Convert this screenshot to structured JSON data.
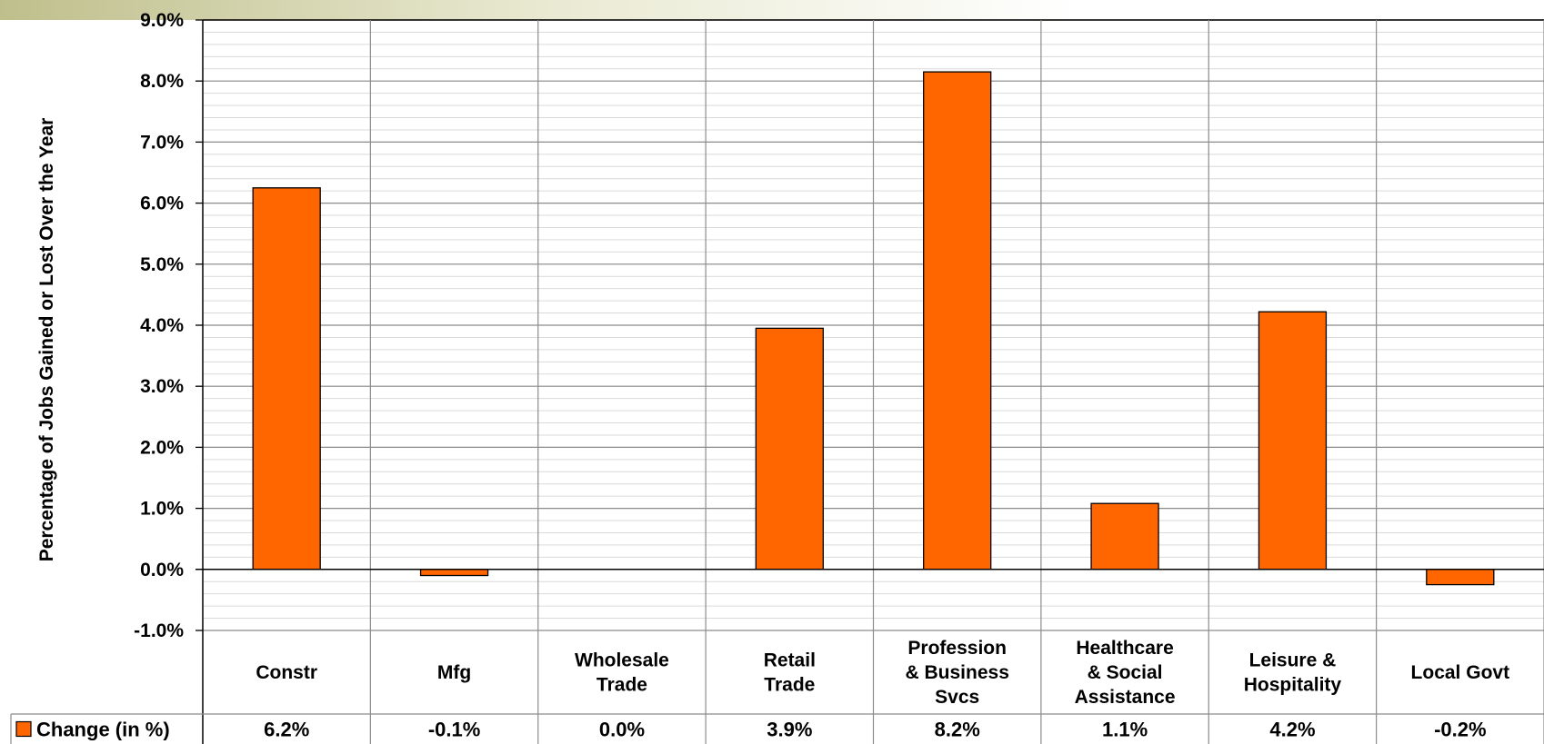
{
  "chart_data": {
    "type": "bar",
    "title": "",
    "xlabel": "",
    "ylabel": "Percentage of Jobs Gained or Lost Over the Year",
    "ylim": [
      -1.0,
      9.0
    ],
    "y_ticks": [
      "9.0%",
      "8.0%",
      "7.0%",
      "6.0%",
      "5.0%",
      "4.0%",
      "3.0%",
      "2.0%",
      "1.0%",
      "0.0%",
      "-1.0%"
    ],
    "categories": [
      [
        "Constr"
      ],
      [
        "Mfg"
      ],
      [
        "Wholesale",
        "Trade"
      ],
      [
        "Retail",
        "Trade"
      ],
      [
        "Profession",
        "& Business",
        "Svcs"
      ],
      [
        "Healthcare",
        "& Social",
        "Assistance"
      ],
      [
        "Leisure &",
        "Hospitality"
      ],
      [
        "Local Govt"
      ]
    ],
    "series": [
      {
        "name": "Change (in %)",
        "values": [
          6.25,
          -0.1,
          0.0,
          3.95,
          8.15,
          1.08,
          4.22,
          -0.25
        ],
        "labels": [
          "6.2%",
          "-0.1%",
          "0.0%",
          "3.9%",
          "8.2%",
          "1.1%",
          "4.2%",
          "-0.2%"
        ],
        "color": "#FF6600"
      }
    ],
    "grid": true,
    "minor_grid": true,
    "legend_placement": "data-table-bottom-left",
    "data_table": true
  }
}
